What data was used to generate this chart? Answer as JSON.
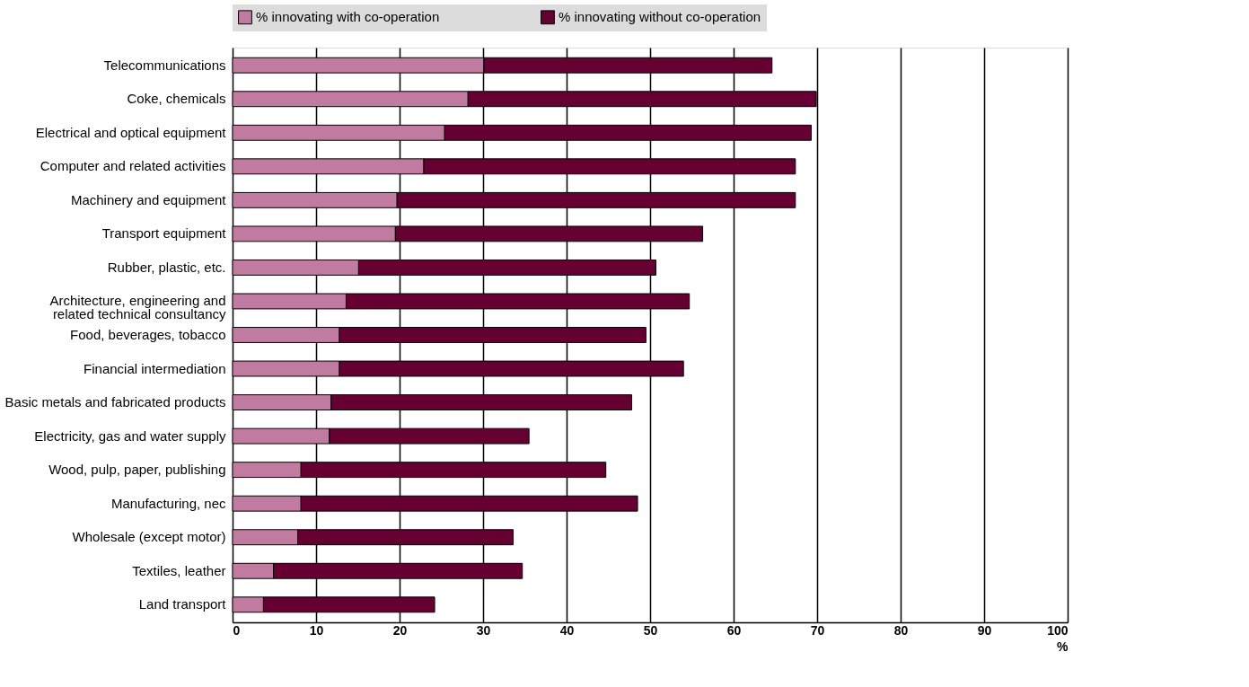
{
  "chart_data": {
    "type": "bar",
    "orientation": "horizontal",
    "stacked": true,
    "categories": [
      "Telecommunications",
      "Coke, chemicals",
      "Electrical and optical equipment",
      "Computer and related activities",
      "Machinery and equipment",
      "Transport equipment",
      "Rubber, plastic, etc.",
      "Architecture, engineering and related technical consultancy",
      "Food, beverages, tobacco",
      "Financial intermediation",
      "Basic metals and fabricated products",
      "Electricity, gas and water supply",
      "Wood, pulp, paper, publishing",
      "Manufacturing, nec",
      "Wholesale (except motor)",
      "Textiles, leather",
      "Land transport"
    ],
    "series": [
      {
        "name": "% innovating with co-operation",
        "color": "#c27ba0",
        "values": [
          30.1,
          28.2,
          25.4,
          22.9,
          19.7,
          19.5,
          15.1,
          13.6,
          12.8,
          12.8,
          11.8,
          11.6,
          8.2,
          8.2,
          7.8,
          4.9,
          3.7
        ]
      },
      {
        "name": "% innovating without co-operation",
        "color": "#660033",
        "values": [
          34.5,
          41.7,
          43.9,
          44.5,
          47.7,
          36.8,
          35.6,
          41.1,
          36.7,
          41.2,
          36.0,
          23.9,
          36.5,
          40.3,
          25.8,
          29.8,
          20.5
        ]
      }
    ],
    "xlabel": "%",
    "xlim": [
      0,
      100
    ],
    "xticks": [
      0,
      10,
      20,
      30,
      40,
      50,
      60,
      70,
      80,
      90,
      100
    ],
    "grid": "x",
    "legend": "top"
  }
}
